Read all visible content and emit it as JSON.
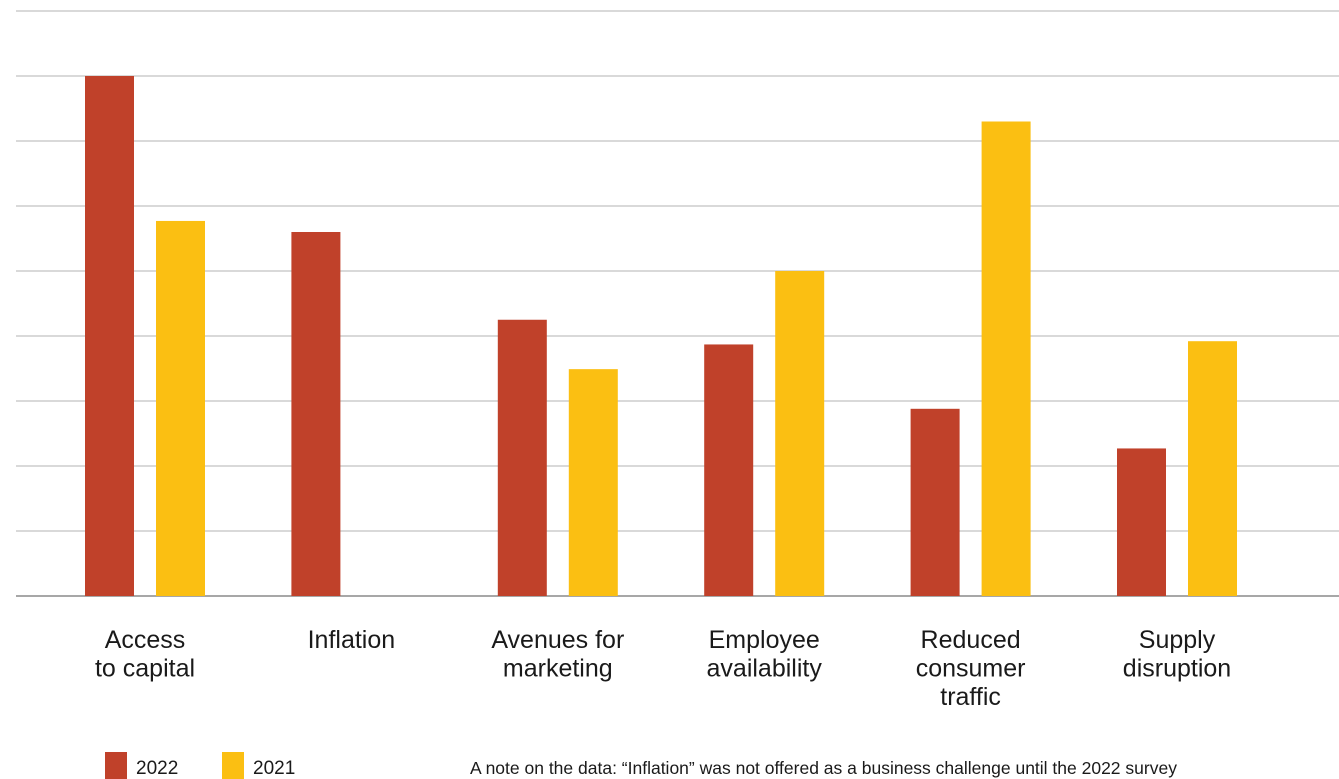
{
  "chart_data": {
    "type": "bar",
    "title": "",
    "xlabel": "",
    "ylabel": "",
    "ylim": [
      0,
      9
    ],
    "grid": true,
    "legend_position": "bottom-left",
    "categories": [
      [
        "Access",
        "to capital"
      ],
      [
        "Inflation"
      ],
      [
        "Avenues for",
        "marketing"
      ],
      [
        "Employee",
        "availability"
      ],
      [
        "Reduced",
        "consumer",
        "traffic"
      ],
      [
        "Supply",
        "disruption"
      ]
    ],
    "series": [
      {
        "name": "2022",
        "color": "#c0412a",
        "values": [
          8.0,
          5.6,
          4.25,
          3.87,
          2.88,
          2.27
        ]
      },
      {
        "name": "2021",
        "color": "#fbbf12",
        "values": [
          5.77,
          null,
          3.49,
          5.0,
          7.3,
          3.92
        ]
      }
    ],
    "note": "A note on the data: “Inflation” was not offered as a business challenge until the 2022 survey"
  }
}
